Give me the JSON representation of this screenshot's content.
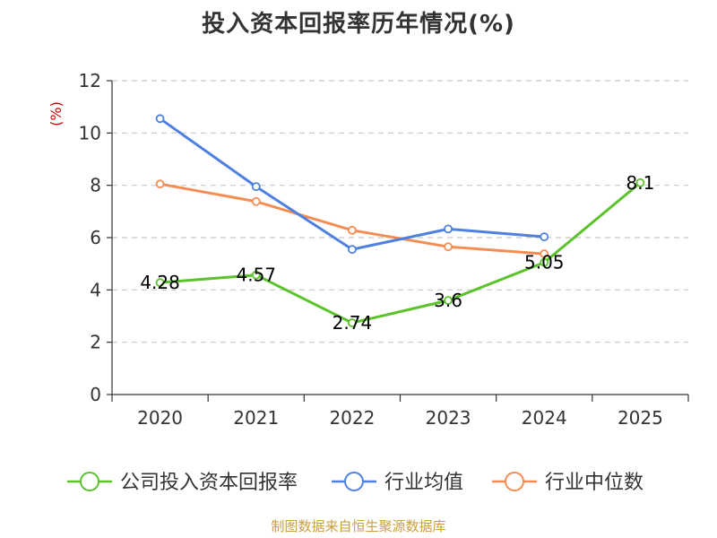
{
  "chart_data": {
    "type": "line",
    "title": "投入资本回报率历年情况(%)",
    "ylabel": "(%)",
    "xlabel": "",
    "categories": [
      "2020",
      "2021",
      "2022",
      "2023",
      "2024",
      "2025"
    ],
    "ylim": [
      0,
      12
    ],
    "yticks": [
      0,
      2,
      4,
      6,
      8,
      10,
      12
    ],
    "grid": true,
    "legend_position": "bottom",
    "series": [
      {
        "name": "公司投入资本回报率",
        "color": "#5cc22c",
        "values": [
          4.28,
          4.57,
          2.74,
          3.6,
          5.05,
          8.1
        ],
        "labels": [
          "4.28",
          "4.57",
          "2.74",
          "3.6",
          "5.05",
          "8.1"
        ]
      },
      {
        "name": "行业均值",
        "color": "#4f80e0",
        "values": [
          10.55,
          7.95,
          5.55,
          6.33,
          6.03,
          null
        ],
        "labels": []
      },
      {
        "name": "行业中位数",
        "color": "#f58c52",
        "values": [
          8.05,
          7.38,
          6.28,
          5.65,
          5.38,
          null
        ],
        "labels": []
      }
    ],
    "source": "制图数据来自恒生聚源数据库",
    "unit_color": "#cc0000"
  }
}
